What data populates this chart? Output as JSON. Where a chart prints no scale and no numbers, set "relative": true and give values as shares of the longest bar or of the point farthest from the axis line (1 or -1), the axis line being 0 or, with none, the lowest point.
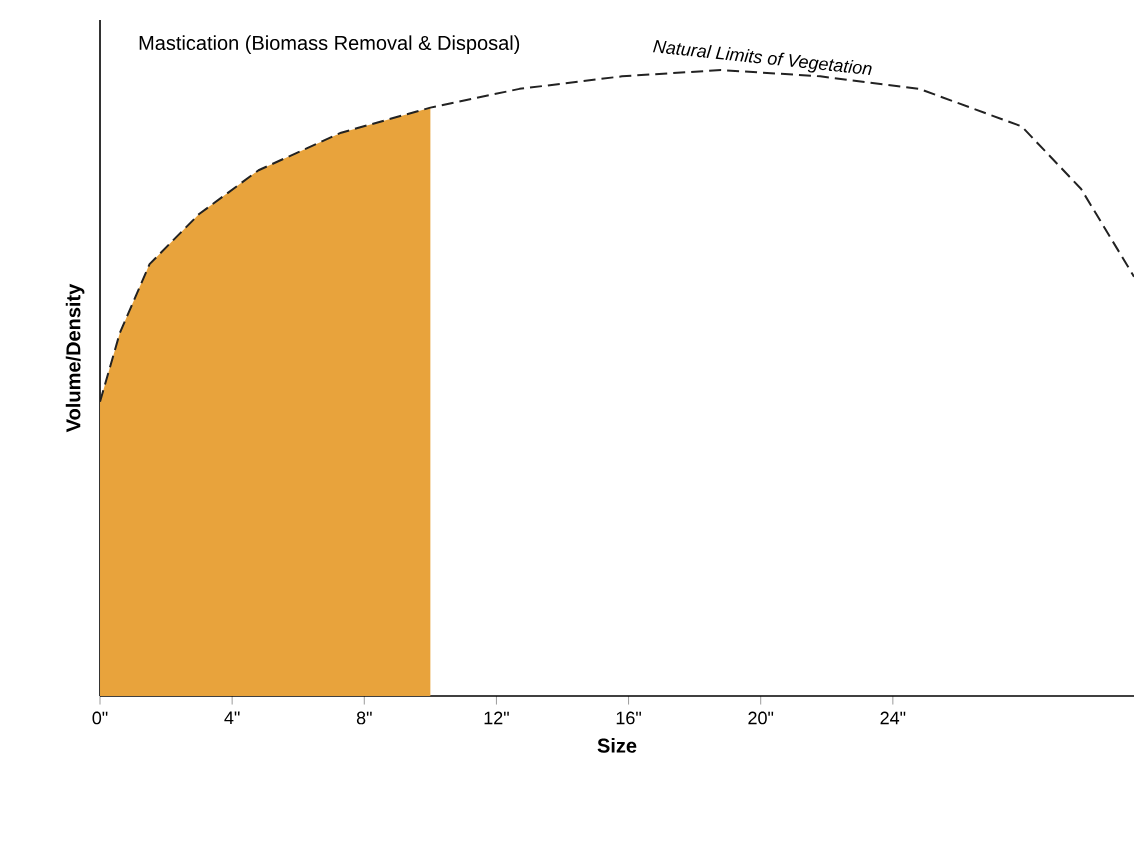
{
  "chart_data": {
    "type": "line",
    "title": "Mastication (Biomass Removal & Disposal)",
    "xlabel": "Size",
    "ylabel": "Volume/Density",
    "relative": true,
    "xlim": [
      0,
      31.3
    ],
    "xticks": [
      {
        "value": 0,
        "label": "0\""
      },
      {
        "value": 4,
        "label": "4\""
      },
      {
        "value": 8,
        "label": "8\""
      },
      {
        "value": 12,
        "label": "12\""
      },
      {
        "value": 16,
        "label": "16\""
      },
      {
        "value": 20,
        "label": "20\""
      },
      {
        "value": 24,
        "label": "24\""
      }
    ],
    "series": [
      {
        "type": "area",
        "color": "#e8a33c",
        "x": [
          0,
          0.6,
          1.5,
          3.0,
          4.8,
          7.3,
          10.0
        ],
        "values": [
          0.47,
          0.58,
          0.69,
          0.77,
          0.84,
          0.9,
          0.94
        ]
      },
      {
        "color": "#222222",
        "x": [
          0,
          0.6,
          1.5,
          3.0,
          4.8,
          7.3,
          10.0,
          12.7,
          15.8,
          18.8,
          21.8,
          24.8,
          27.9,
          29.7,
          31.3
        ],
        "values": [
          0.47,
          0.58,
          0.69,
          0.77,
          0.84,
          0.9,
          0.94,
          0.97,
          0.99,
          1.0,
          0.99,
          0.97,
          0.91,
          0.81,
          0.67
        ]
      }
    ],
    "line_style": "dashed",
    "grid": false,
    "annotations": [
      {
        "text": "*Natural Limits of Vegetation*",
        "x": 20,
        "y": 0.99
      }
    ]
  }
}
